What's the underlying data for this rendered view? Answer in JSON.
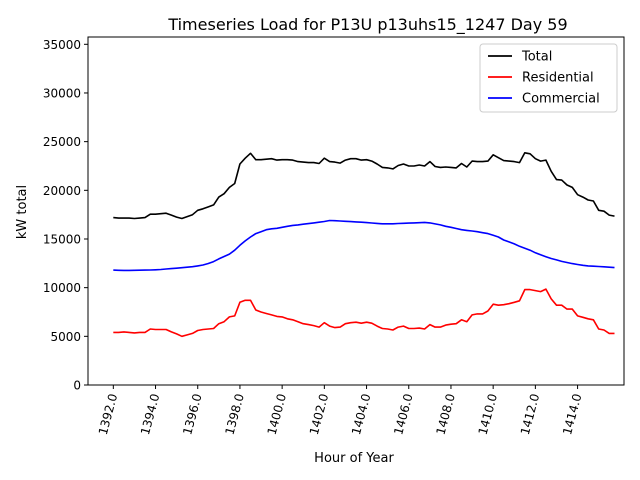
{
  "chart_data": {
    "type": "line",
    "title": "Timeseries Load for P13U p13uhs15_1247  Day 59",
    "xlabel": "Hour of Year",
    "ylabel": "kW total",
    "xlim": [
      1390.8,
      1416.2
    ],
    "ylim": [
      0,
      35750
    ],
    "xticks": [
      1392,
      1394,
      1396,
      1398,
      1400,
      1402,
      1404,
      1406,
      1408,
      1410,
      1412,
      1414
    ],
    "xtick_labels": [
      "1392.0",
      "1394.0",
      "1396.0",
      "1398.0",
      "1400.0",
      "1402.0",
      "1404.0",
      "1406.0",
      "1408.0",
      "1410.0",
      "1412.0",
      "1414.0"
    ],
    "yticks": [
      0,
      5000,
      10000,
      15000,
      20000,
      25000,
      30000,
      35000
    ],
    "ytick_labels": [
      "0",
      "5000",
      "10000",
      "15000",
      "20000",
      "25000",
      "30000",
      "35000"
    ],
    "grid": false,
    "legend_position": "top-right",
    "x": [
      1392.0,
      1392.25,
      1392.5,
      1392.75,
      1393.0,
      1393.25,
      1393.5,
      1393.75,
      1394.0,
      1394.25,
      1394.5,
      1394.75,
      1395.0,
      1395.25,
      1395.5,
      1395.75,
      1396.0,
      1396.25,
      1396.5,
      1396.75,
      1397.0,
      1397.25,
      1397.5,
      1397.75,
      1398.0,
      1398.25,
      1398.5,
      1398.75,
      1399.0,
      1399.25,
      1399.5,
      1399.75,
      1400.0,
      1400.25,
      1400.5,
      1400.75,
      1401.0,
      1401.25,
      1401.5,
      1401.75,
      1402.0,
      1402.25,
      1402.5,
      1402.75,
      1403.0,
      1403.25,
      1403.5,
      1403.75,
      1404.0,
      1404.25,
      1404.5,
      1404.75,
      1405.0,
      1405.25,
      1405.5,
      1405.75,
      1406.0,
      1406.25,
      1406.5,
      1406.75,
      1407.0,
      1407.25,
      1407.5,
      1407.75,
      1408.0,
      1408.25,
      1408.5,
      1408.75,
      1409.0,
      1409.25,
      1409.5,
      1409.75,
      1410.0,
      1410.25,
      1410.5,
      1410.75,
      1411.0,
      1411.25,
      1411.5,
      1411.75,
      1412.0,
      1412.25,
      1412.5,
      1412.75,
      1413.0,
      1413.25,
      1413.5,
      1413.75,
      1414.0,
      1414.25,
      1414.5,
      1414.75,
      1415.0,
      1415.25,
      1415.5,
      1415.75
    ],
    "series": [
      {
        "name": "Total",
        "color": "#000000",
        "values": [
          17200,
          17150,
          17150,
          17150,
          17100,
          17150,
          17200,
          17550,
          17550,
          17600,
          17650,
          17450,
          17250,
          17100,
          17300,
          17500,
          17950,
          18100,
          18300,
          18500,
          19300,
          19650,
          20300,
          20700,
          22700,
          23300,
          23800,
          23150,
          23150,
          23200,
          23250,
          23100,
          23150,
          23150,
          23100,
          22950,
          22900,
          22850,
          22850,
          22750,
          23300,
          22950,
          22900,
          22800,
          23100,
          23250,
          23250,
          23100,
          23150,
          23000,
          22700,
          22350,
          22300,
          22200,
          22550,
          22700,
          22500,
          22500,
          22600,
          22500,
          22950,
          22450,
          22350,
          22400,
          22350,
          22300,
          22750,
          22400,
          23000,
          22950,
          22950,
          23000,
          23650,
          23350,
          23050,
          23000,
          22950,
          22850,
          23850,
          23750,
          23250,
          23000,
          23100,
          21950,
          21100,
          21050,
          20550,
          20300,
          19550,
          19300,
          19000,
          18900,
          17950,
          17850,
          17450,
          17350
        ]
      },
      {
        "name": "Residential",
        "color": "#ff0000",
        "values": [
          5400,
          5400,
          5450,
          5400,
          5350,
          5400,
          5400,
          5750,
          5700,
          5700,
          5700,
          5450,
          5250,
          5000,
          5150,
          5300,
          5600,
          5700,
          5750,
          5800,
          6300,
          6500,
          7000,
          7100,
          8500,
          8700,
          8700,
          7700,
          7500,
          7350,
          7200,
          7050,
          7000,
          6800,
          6700,
          6500,
          6300,
          6200,
          6100,
          5950,
          6400,
          6050,
          5900,
          5950,
          6300,
          6400,
          6450,
          6350,
          6450,
          6350,
          6050,
          5800,
          5750,
          5650,
          5950,
          6050,
          5800,
          5800,
          5850,
          5750,
          6200,
          5950,
          5950,
          6150,
          6250,
          6300,
          6700,
          6500,
          7200,
          7300,
          7300,
          7600,
          8300,
          8200,
          8250,
          8350,
          8500,
          8650,
          9800,
          9800,
          9700,
          9600,
          9850,
          8850,
          8200,
          8200,
          7800,
          7800,
          7100,
          6950,
          6800,
          6700,
          5750,
          5650,
          5300,
          5300
        ]
      },
      {
        "name": "Commercial",
        "color": "#0000ff",
        "values": [
          11800,
          11780,
          11770,
          11770,
          11780,
          11790,
          11800,
          11810,
          11830,
          11870,
          11920,
          11960,
          12000,
          12050,
          12100,
          12150,
          12230,
          12330,
          12480,
          12680,
          12950,
          13200,
          13450,
          13850,
          14350,
          14800,
          15200,
          15550,
          15750,
          15950,
          16050,
          16100,
          16200,
          16300,
          16400,
          16450,
          16520,
          16580,
          16650,
          16720,
          16800,
          16900,
          16880,
          16850,
          16820,
          16790,
          16760,
          16720,
          16680,
          16640,
          16600,
          16560,
          16560,
          16560,
          16590,
          16610,
          16630,
          16650,
          16670,
          16700,
          16650,
          16550,
          16450,
          16300,
          16200,
          16080,
          15950,
          15880,
          15820,
          15750,
          15650,
          15550,
          15380,
          15200,
          14900,
          14700,
          14500,
          14250,
          14050,
          13850,
          13580,
          13380,
          13180,
          13000,
          12850,
          12700,
          12580,
          12470,
          12380,
          12300,
          12240,
          12200,
          12170,
          12140,
          12100,
          12060
        ]
      }
    ]
  }
}
